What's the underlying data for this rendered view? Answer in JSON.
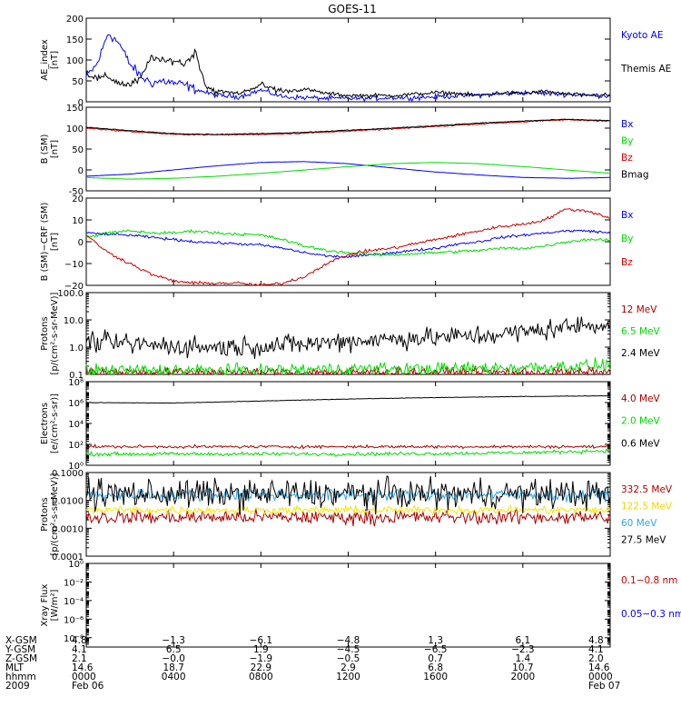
{
  "page_title": "GOES-11",
  "chart_data": [
    {
      "type": "line",
      "ylabel": [
        "AE_index",
        "[nT]"
      ],
      "yscale": "linear",
      "ylim": [
        0,
        200
      ],
      "ticks": [
        {
          "v": 0,
          "label": "0"
        },
        {
          "v": 50,
          "label": "50"
        },
        {
          "v": 100,
          "label": "100"
        },
        {
          "v": 150,
          "label": "150"
        },
        {
          "v": 200,
          "label": "200"
        }
      ],
      "x": [
        0,
        0.5,
        1,
        1.5,
        2,
        2.5,
        3,
        3.5,
        4,
        4.5,
        5,
        5.5,
        6,
        7,
        8,
        9,
        10,
        11,
        12,
        13,
        14,
        15,
        16,
        17,
        18,
        19,
        20,
        21,
        22,
        23,
        24
      ],
      "series": [
        {
          "name": "Kyoto AE",
          "color": "#0000ff",
          "values": [
            60,
            90,
            165,
            140,
            90,
            60,
            45,
            50,
            45,
            40,
            30,
            22,
            15,
            12,
            28,
            12,
            10,
            8,
            8,
            8,
            10,
            10,
            12,
            14,
            16,
            18,
            22,
            20,
            18,
            15,
            15
          ]
        },
        {
          "name": "Themis AE",
          "color": "#000000",
          "values": [
            70,
            55,
            60,
            45,
            40,
            55,
            110,
            95,
            100,
            90,
            120,
            35,
            25,
            20,
            40,
            25,
            30,
            20,
            15,
            15,
            15,
            18,
            22,
            20,
            15,
            22,
            20,
            25,
            18,
            16,
            16
          ]
        }
      ],
      "noise": [
        5,
        4
      ]
    },
    {
      "type": "line",
      "ylabel": [
        "B (SM)",
        "[nT]"
      ],
      "yscale": "linear",
      "ylim": [
        -50,
        150
      ],
      "ticks": [
        {
          "v": -50,
          "label": "-50"
        },
        {
          "v": 0,
          "label": "0"
        },
        {
          "v": 50,
          "label": "50"
        },
        {
          "v": 100,
          "label": "100"
        },
        {
          "v": 150,
          "label": "150"
        }
      ],
      "x": [
        0,
        2,
        4,
        6,
        8,
        10,
        12,
        14,
        16,
        18,
        20,
        22,
        24
      ],
      "series": [
        {
          "name": "Bx",
          "color": "#0000ff",
          "values": [
            -15,
            -10,
            0,
            10,
            18,
            20,
            15,
            5,
            -5,
            -12,
            -18,
            -20,
            -18
          ]
        },
        {
          "name": "By",
          "color": "#00dd00",
          "values": [
            -18,
            -22,
            -20,
            -15,
            -8,
            0,
            8,
            15,
            18,
            15,
            8,
            0,
            -8
          ]
        },
        {
          "name": "Bz",
          "color": "#cc0000",
          "values": [
            100,
            92,
            85,
            84,
            85,
            88,
            93,
            98,
            104,
            110,
            115,
            120,
            117
          ]
        },
        {
          "name": "Bmag",
          "color": "#000000",
          "values": [
            102,
            94,
            87,
            85,
            87,
            90,
            95,
            100,
            106,
            112,
            117,
            121,
            118
          ]
        }
      ],
      "noise": [
        0.3,
        0.3,
        0.6,
        0.4
      ]
    },
    {
      "type": "line",
      "ylabel": [
        "B (SM)−CRF (SM)",
        "[nT]"
      ],
      "yscale": "linear",
      "ylim": [
        -20,
        20
      ],
      "ticks": [
        {
          "v": -20,
          "label": "−20"
        },
        {
          "v": -10,
          "label": "−10"
        },
        {
          "v": 0,
          "label": "0"
        },
        {
          "v": 10,
          "label": "10"
        },
        {
          "v": 20,
          "label": "20"
        }
      ],
      "x": [
        0,
        1,
        2,
        3,
        4,
        5,
        6,
        7,
        8,
        9,
        10,
        11,
        12,
        13,
        14,
        15,
        16,
        17,
        18,
        19,
        20,
        21,
        22,
        23,
        24
      ],
      "series": [
        {
          "name": "Bx",
          "color": "#0000ff",
          "values": [
            4,
            3.5,
            3,
            2,
            1,
            0,
            -0.5,
            -1,
            -1.5,
            -3,
            -5,
            -6.5,
            -7,
            -6,
            -5,
            -4,
            -3,
            -1,
            0,
            2,
            3,
            4,
            5,
            5,
            4
          ]
        },
        {
          "name": "By",
          "color": "#00dd00",
          "values": [
            2,
            4,
            5,
            4,
            4,
            5,
            4,
            3.5,
            3,
            1,
            -2,
            -4,
            -5,
            -6,
            -6,
            -5.5,
            -5,
            -4.5,
            -4,
            -3,
            -3,
            -2,
            0,
            1,
            1
          ]
        },
        {
          "name": "Bz",
          "color": "#cc0000",
          "values": [
            3,
            -5,
            -10,
            -15,
            -18,
            -19,
            -19,
            -19,
            -20,
            -19,
            -16,
            -10,
            -6,
            -4,
            -3,
            -1,
            1,
            3,
            5,
            7,
            8,
            10,
            15,
            14,
            11
          ]
        }
      ],
      "noise": [
        0.5,
        0.6,
        0.6
      ]
    },
    {
      "type": "line",
      "ylabel": [
        "Protons",
        "[p/(cm²-s-sr-MeV)]"
      ],
      "yscale": "log",
      "ylim": [
        0.1,
        100
      ],
      "ticks": [
        {
          "v": 0.1,
          "label": "0.1"
        },
        {
          "v": 1,
          "label": "1.0"
        },
        {
          "v": 10,
          "label": "10.0"
        },
        {
          "v": 100,
          "label": "100.0"
        }
      ],
      "x": [
        0,
        2,
        4,
        6,
        8,
        10,
        12,
        14,
        16,
        18,
        20,
        22,
        24
      ],
      "series": [
        {
          "name": "12 MeV",
          "color": "#aa0000",
          "values": [
            0.12,
            0.12,
            0.12,
            0.12,
            0.12,
            0.12,
            0.12,
            0.12,
            0.12,
            0.12,
            0.12,
            0.12,
            0.12
          ]
        },
        {
          "name": "6.5 MeV",
          "color": "#00dd00",
          "values": [
            0.14,
            0.14,
            0.14,
            0.14,
            0.14,
            0.15,
            0.16,
            0.16,
            0.16,
            0.17,
            0.18,
            0.2,
            0.22
          ]
        },
        {
          "name": "2.4 MeV",
          "color": "#000000",
          "values": [
            1.6,
            1.3,
            1.1,
            1.0,
            1.1,
            1.3,
            1.7,
            2.0,
            2.3,
            2.6,
            3.5,
            5.5,
            7.5
          ]
        }
      ],
      "noise": [
        0.15,
        0.2,
        0.32
      ]
    },
    {
      "type": "line",
      "ylabel": [
        "Electrons",
        "[e/(cm²-s-sr)]"
      ],
      "yscale": "log",
      "ylim": [
        1,
        100000000
      ],
      "ticks": [
        {
          "v": 1,
          "label": "10⁰"
        },
        {
          "v": 100,
          "label": "10²"
        },
        {
          "v": 10000,
          "label": "10⁴"
        },
        {
          "v": 1000000,
          "label": "10⁶"
        },
        {
          "v": 100000000,
          "label": "10⁸"
        }
      ],
      "x": [
        0,
        4,
        8,
        12,
        16,
        20,
        24
      ],
      "series": [
        {
          "name": "4.0 MeV",
          "color": "#aa0000",
          "values": [
            60,
            60,
            60,
            60,
            60,
            60,
            60
          ]
        },
        {
          "name": "2.0 MeV",
          "color": "#00dd00",
          "values": [
            12,
            12,
            12,
            12,
            13,
            16,
            25
          ]
        },
        {
          "name": "0.6 MeV",
          "color": "#000000",
          "values": [
            1000000,
            900000,
            1400000,
            2200000,
            3000000,
            3800000,
            4500000
          ]
        }
      ],
      "noise": [
        0.12,
        0.15,
        0.02
      ]
    },
    {
      "type": "line",
      "ylabel": [
        "Protons",
        "[p/(cm²-s-sr-MeV)]"
      ],
      "yscale": "log",
      "ylim": [
        0.0001,
        0.1
      ],
      "ticks": [
        {
          "v": 0.0001,
          "label": "0.0001"
        },
        {
          "v": 0.001,
          "label": "0.0010"
        },
        {
          "v": 0.01,
          "label": "0.0100"
        },
        {
          "v": 0.1,
          "label": "0.1000"
        }
      ],
      "x": [
        0,
        12,
        24
      ],
      "series": [
        {
          "name": "332.5 MeV",
          "color": "#aa0000",
          "values": [
            0.0025,
            0.0025,
            0.0025
          ]
        },
        {
          "name": "122.5 MeV",
          "color": "#f5e600",
          "values": [
            0.0045,
            0.0045,
            0.0045
          ]
        },
        {
          "name": "60 MeV",
          "color": "#2aa8e8",
          "values": [
            0.016,
            0.016,
            0.016
          ]
        },
        {
          "name": "27.5 MeV",
          "color": "#000000",
          "values": [
            0.017,
            0.017,
            0.017
          ]
        }
      ],
      "noise": [
        0.22,
        0.12,
        0.18,
        0.45
      ]
    },
    {
      "type": "line",
      "ylabel": [
        "Xray Flux",
        "[W/m²]"
      ],
      "yscale": "log",
      "ylim": [
        1e-09,
        1
      ],
      "ticks": [
        {
          "v": 1,
          "label": "10⁰"
        },
        {
          "v": 0.01,
          "label": "10⁻²"
        },
        {
          "v": 0.0001,
          "label": "10⁻⁴"
        },
        {
          "v": 1e-06,
          "label": "10⁻⁶"
        },
        {
          "v": 1e-08,
          "label": "10⁻⁸"
        }
      ],
      "x": [],
      "series": [
        {
          "name": "0.1−0.8 nm",
          "color": "#cc0000",
          "values": []
        },
        {
          "name": "0.05−0.3 nm",
          "color": "#0000ff",
          "values": []
        }
      ]
    }
  ],
  "xaxis": {
    "range_hours": [
      0,
      24
    ],
    "tick_hours": [
      0,
      4,
      8,
      12,
      16,
      20,
      24
    ],
    "row_labels": [
      "X-GSM",
      "Y-GSM",
      "Z-GSM",
      "MLT",
      "hhmm",
      "2009"
    ],
    "rows": [
      [
        "4.8",
        "−1.3",
        "−6.1",
        "−4.8",
        "1.3",
        "6.1",
        "4.8"
      ],
      [
        "4.1",
        "6.5",
        "1.9",
        "−4.5",
        "−6.5",
        "−2.3",
        "4.1"
      ],
      [
        "2.1",
        "−0.0",
        "−1.9",
        "−0.5",
        "0.7",
        "1.4",
        "2.0"
      ],
      [
        "14.6",
        "18.7",
        "22.9",
        "2.9",
        "6.8",
        "10.7",
        "14.6"
      ],
      [
        "0000",
        "0400",
        "0800",
        "1200",
        "1600",
        "2000",
        "0000"
      ]
    ],
    "date_start": "Feb 06",
    "date_end": "Feb 07"
  }
}
